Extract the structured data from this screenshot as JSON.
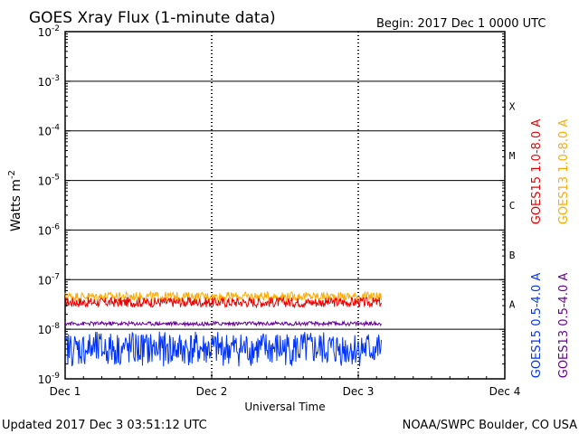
{
  "header": {
    "title": "GOES Xray Flux (1-minute data)",
    "begin": "Begin:  2017 Dec 1 0000 UTC"
  },
  "footer": {
    "updated": "Updated 2017 Dec  3 03:51:12 UTC",
    "credit": "NOAA/SWPC Boulder, CO USA"
  },
  "chart_data": {
    "type": "line",
    "ylabel": "Watts m",
    "ylabel_sup": "-2",
    "xlabel": "Universal Time",
    "y_scale": "log",
    "ylim": [
      1e-09,
      0.01
    ],
    "y_ticks": [
      {
        "base": "10",
        "exp": "-9"
      },
      {
        "base": "10",
        "exp": "-8"
      },
      {
        "base": "10",
        "exp": "-7"
      },
      {
        "base": "10",
        "exp": "-6"
      },
      {
        "base": "10",
        "exp": "-5"
      },
      {
        "base": "10",
        "exp": "-4"
      },
      {
        "base": "10",
        "exp": "-3"
      },
      {
        "base": "10",
        "exp": "-2"
      }
    ],
    "x_ticks": [
      "Dec 1",
      "Dec 2",
      "Dec 3",
      "Dec 4"
    ],
    "xlim_days": [
      0,
      3
    ],
    "flare_classes": [
      {
        "label": "A",
        "decade": -8
      },
      {
        "label": "B",
        "decade": -7
      },
      {
        "label": "C",
        "decade": -6
      },
      {
        "label": "M",
        "decade": -5
      },
      {
        "label": "X",
        "decade": -4
      }
    ],
    "series": [
      {
        "name": "GOES15 1.0-8.0 A",
        "color": "#ee0000",
        "level": 3.5e-08,
        "spread": 0.1,
        "xrange_days": [
          0,
          2.16
        ]
      },
      {
        "name": "GOES13 1.0-8.0 A",
        "color": "#ffaa00",
        "level": 4.6e-08,
        "spread": 0.09,
        "xrange_days": [
          0,
          2.16
        ]
      },
      {
        "name": "GOES15 0.5-4.0 A",
        "color": "#0033ff",
        "level": 4e-09,
        "spread": 0.35,
        "xrange_days": [
          0,
          2.16
        ]
      },
      {
        "name": "GOES13 0.5-4.0 A",
        "color": "#660099",
        "level": 1.3e-08,
        "spread": 0.04,
        "xrange_days": [
          0,
          2.16
        ]
      }
    ]
  }
}
